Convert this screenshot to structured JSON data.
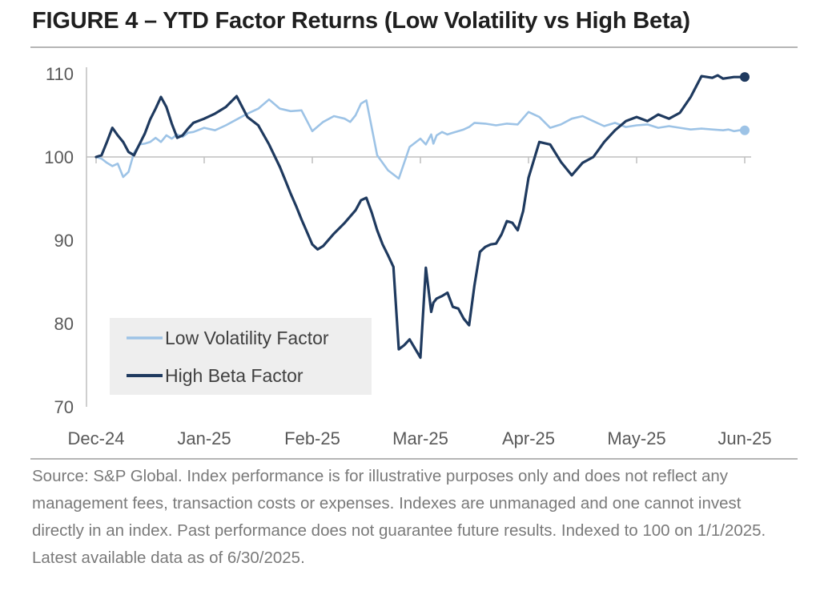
{
  "title": "FIGURE 4 – YTD Factor Returns (Low Volatility vs High Beta)",
  "source": "Source: S&P Global. Index performance is for illustrative purposes only and does not reflect any management fees, transaction costs or expenses. Indexes are unmanaged and one cannot invest directly in an index. Past performance does not guarantee future results. Indexed to 100 on 1/1/2025. Latest available data as of 6/30/2025.",
  "colors": {
    "low_vol": "#9dc3e6",
    "high_beta": "#1f3a5f",
    "axis": "#bfbfbf",
    "legend_bg": "#eeeeee",
    "tick_text": "#595959"
  },
  "chart_data": {
    "type": "line",
    "title": "YTD Factor Returns (Low Volatility vs High Beta)",
    "xlabel": "",
    "ylabel": "",
    "ylim": [
      70,
      110
    ],
    "yticks": [
      70,
      80,
      90,
      100,
      110
    ],
    "xlim": [
      0,
      6
    ],
    "xticks": [
      {
        "x": 0,
        "label": "Dec-24"
      },
      {
        "x": 1,
        "label": "Jan-25"
      },
      {
        "x": 2,
        "label": "Feb-25"
      },
      {
        "x": 3,
        "label": "Mar-25"
      },
      {
        "x": 4,
        "label": "Apr-25"
      },
      {
        "x": 5,
        "label": "May-25"
      },
      {
        "x": 6,
        "label": "Jun-25"
      }
    ],
    "legend": {
      "placement": "bottom-left"
    },
    "series": [
      {
        "name": "Low Volatility Factor",
        "color": "#9dc3e6",
        "x": [
          0,
          0.05,
          0.1,
          0.15,
          0.2,
          0.25,
          0.3,
          0.35,
          0.4,
          0.45,
          0.5,
          0.55,
          0.6,
          0.65,
          0.7,
          0.75,
          0.8,
          0.85,
          0.9,
          1.0,
          1.1,
          1.2,
          1.3,
          1.4,
          1.5,
          1.6,
          1.7,
          1.8,
          1.9,
          2.0,
          2.1,
          2.2,
          2.3,
          2.35,
          2.4,
          2.45,
          2.5,
          2.6,
          2.7,
          2.8,
          2.9,
          3.0,
          3.05,
          3.1,
          3.12,
          3.15,
          3.2,
          3.25,
          3.3,
          3.35,
          3.4,
          3.45,
          3.5,
          3.6,
          3.7,
          3.8,
          3.9,
          4.0,
          4.1,
          4.2,
          4.3,
          4.4,
          4.5,
          4.6,
          4.7,
          4.8,
          4.9,
          5.0,
          5.1,
          5.2,
          5.3,
          5.4,
          5.5,
          5.6,
          5.7,
          5.8,
          5.85,
          5.9,
          5.95,
          6.0
        ],
        "values": [
          100,
          99.8,
          99.3,
          98.9,
          99.2,
          97.6,
          98.2,
          100.5,
          101.5,
          101.6,
          101.8,
          102.3,
          101.8,
          102.6,
          102.2,
          102.7,
          102.4,
          102.9,
          103.0,
          103.5,
          103.2,
          103.8,
          104.5,
          105.2,
          105.8,
          106.9,
          105.8,
          105.5,
          105.6,
          103.1,
          104.2,
          104.9,
          104.6,
          104.2,
          105.0,
          106.4,
          106.8,
          100.2,
          98.4,
          97.4,
          101.2,
          102.2,
          101.5,
          102.7,
          101.6,
          102.6,
          103.0,
          102.7,
          102.9,
          103.1,
          103.3,
          103.6,
          104.1,
          104.0,
          103.8,
          104.0,
          103.9,
          105.4,
          104.8,
          103.5,
          103.9,
          104.6,
          104.9,
          104.3,
          103.7,
          104.1,
          103.6,
          103.8,
          103.9,
          103.5,
          103.7,
          103.5,
          103.3,
          103.4,
          103.3,
          103.2,
          103.3,
          103.1,
          103.2,
          103.2
        ]
      },
      {
        "name": "High Beta Factor",
        "color": "#1f3a5f",
        "x": [
          0,
          0.05,
          0.1,
          0.15,
          0.2,
          0.25,
          0.3,
          0.35,
          0.4,
          0.45,
          0.5,
          0.55,
          0.6,
          0.65,
          0.7,
          0.75,
          0.8,
          0.85,
          0.9,
          1.0,
          1.1,
          1.2,
          1.3,
          1.4,
          1.5,
          1.6,
          1.7,
          1.75,
          1.8,
          1.85,
          1.9,
          1.95,
          2.0,
          2.05,
          2.1,
          2.2,
          2.3,
          2.4,
          2.45,
          2.5,
          2.55,
          2.6,
          2.65,
          2.7,
          2.75,
          2.8,
          2.85,
          2.9,
          3.0,
          3.05,
          3.1,
          3.12,
          3.15,
          3.2,
          3.25,
          3.3,
          3.35,
          3.4,
          3.45,
          3.5,
          3.55,
          3.6,
          3.65,
          3.7,
          3.75,
          3.8,
          3.85,
          3.9,
          3.95,
          4.0,
          4.1,
          4.2,
          4.3,
          4.4,
          4.5,
          4.6,
          4.7,
          4.8,
          4.9,
          5.0,
          5.1,
          5.2,
          5.3,
          5.4,
          5.5,
          5.6,
          5.7,
          5.75,
          5.8,
          5.85,
          5.9,
          6.0
        ],
        "values": [
          100,
          100.2,
          101.8,
          103.5,
          102.6,
          101.8,
          100.6,
          100.2,
          101.5,
          102.8,
          104.5,
          105.8,
          107.2,
          106.0,
          104.0,
          102.3,
          102.6,
          103.4,
          104.1,
          104.6,
          105.2,
          106.0,
          107.3,
          104.8,
          103.8,
          101.5,
          98.8,
          97.2,
          95.6,
          94.1,
          92.5,
          91.0,
          89.5,
          88.9,
          89.3,
          90.8,
          92.1,
          93.6,
          94.8,
          95.1,
          93.3,
          91.2,
          89.5,
          88.2,
          86.8,
          76.9,
          77.4,
          78.1,
          75.9,
          86.7,
          81.4,
          82.5,
          83.0,
          83.3,
          83.7,
          82.0,
          81.8,
          80.6,
          79.8,
          84.6,
          88.6,
          89.2,
          89.5,
          89.6,
          90.7,
          92.3,
          92.1,
          91.2,
          93.5,
          97.5,
          101.8,
          101.5,
          99.4,
          97.8,
          99.3,
          100.0,
          101.8,
          103.2,
          104.3,
          104.8,
          104.3,
          105.1,
          104.6,
          105.3,
          107.2,
          109.7,
          109.5,
          109.8,
          109.4,
          109.5,
          109.6,
          109.6
        ]
      }
    ]
  }
}
